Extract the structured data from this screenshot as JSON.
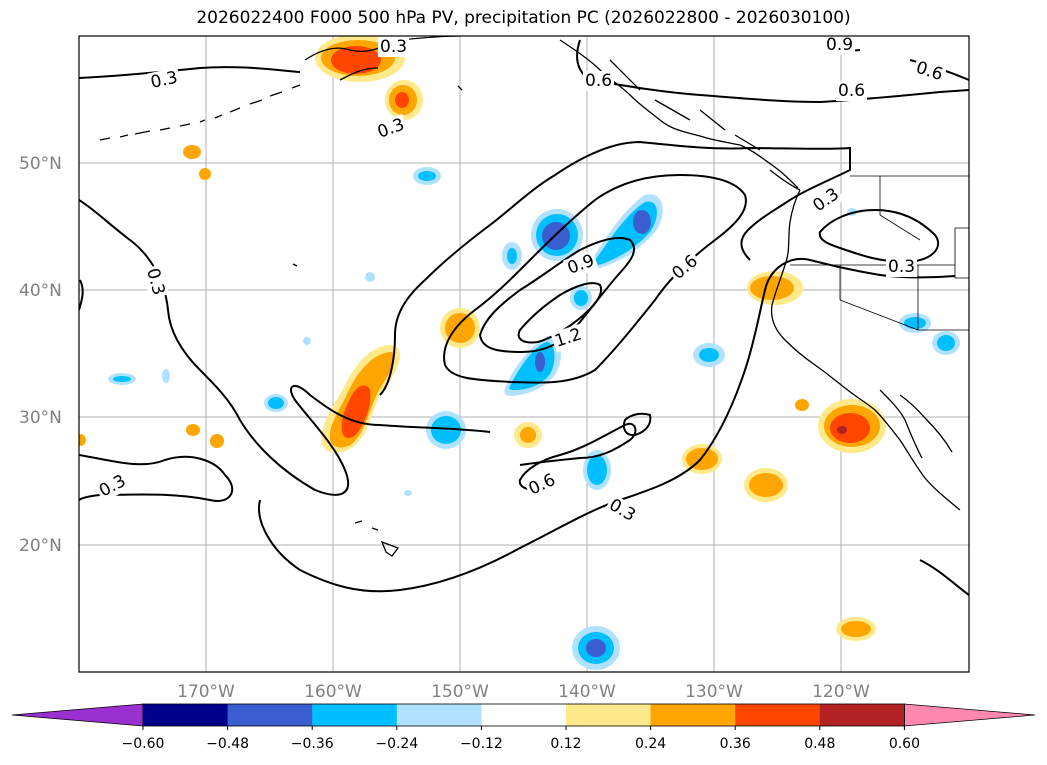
{
  "title": "2026022400 F000 500 hPa PV, precipitation PC (2026022800 - 2026030100)",
  "map": {
    "lat_labels": [
      "50°N",
      "40°N",
      "30°N",
      "20°N"
    ],
    "lon_labels": [
      "170°W",
      "160°W",
      "150°W",
      "140°W",
      "130°W",
      "120°W"
    ],
    "contour_labels": [
      "0.3",
      "0.3",
      "0.3",
      "0.3",
      "0.3",
      "0.3",
      "0.3",
      "0.6",
      "0.6",
      "0.6",
      "0.6",
      "0.6",
      "0.9",
      "0.9",
      "1.2",
      "0.3"
    ],
    "contour_color": "#000000",
    "coastline_color": "#000000",
    "gridline_color": "#b0b0b0"
  },
  "colorbar": {
    "ticks": [
      "−0.60",
      "−0.48",
      "−0.36",
      "−0.24",
      "−0.12",
      "0.12",
      "0.24",
      "0.36",
      "0.48",
      "0.60"
    ],
    "colors": [
      "#9b30d0",
      "#00008b",
      "#3a5ed0",
      "#00bfff",
      "#b0e2ff",
      "#ffffff",
      "#ffe98a",
      "#ffa500",
      "#ff4500",
      "#b22222",
      "#ff88b0"
    ]
  }
}
